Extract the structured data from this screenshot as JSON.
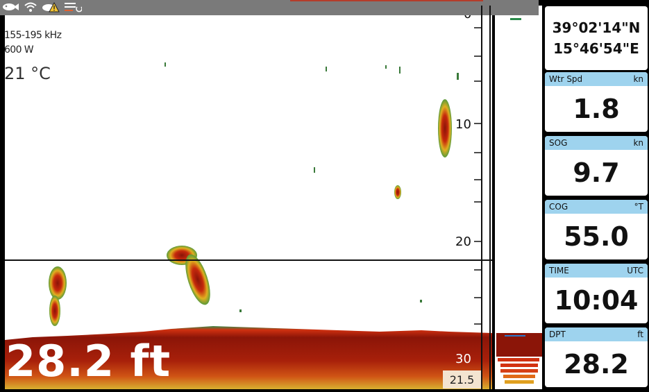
{
  "status_bar": {
    "icons": [
      "fish-icon",
      "wifi-icon",
      "alarm-warning-icon",
      "menu-icon"
    ]
  },
  "sonar": {
    "frequency": "155-195 kHz",
    "power": "600 W",
    "water_temp": "21 °C",
    "depth_readout": "28.2 ft",
    "cursor_depth": "21.5",
    "scale": [
      "0",
      "10",
      "20",
      "30"
    ]
  },
  "panel": {
    "position": {
      "lat": "39°02'14\"N",
      "lon": "15°46'54\"E"
    },
    "tiles": [
      {
        "label": "Wtr Spd",
        "unit": "kn",
        "value": "1.8"
      },
      {
        "label": "SOG",
        "unit": "kn",
        "value": "9.7"
      },
      {
        "label": "COG",
        "unit": "°T",
        "value": "55.0"
      },
      {
        "label": "TIME",
        "unit": "UTC",
        "value": "10:04"
      },
      {
        "label": "DPT",
        "unit": "ft",
        "value": "28.2"
      }
    ]
  },
  "colors": {
    "bottom_dark": "#8b1508",
    "bottom_mid": "#c0250c",
    "fish_red": "#b21d0a",
    "fish_yellow": "#e0b020",
    "fish_green": "#5a9a3a",
    "tile_header": "#9ed3ee"
  }
}
